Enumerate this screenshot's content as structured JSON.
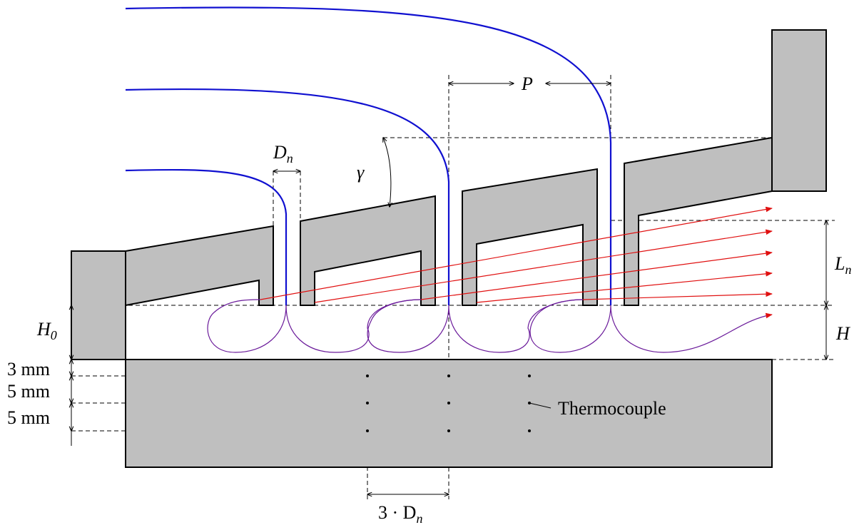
{
  "annotations": [
    {
      "text": "P"
    },
    {
      "text": "D",
      "sub": "n"
    },
    {
      "text": "γ"
    },
    {
      "text": "L",
      "sub": "n"
    },
    {
      "text": "H"
    },
    {
      "text": "H",
      "sub": "0"
    },
    {
      "text": "3 mm"
    },
    {
      "text": "5 mm"
    },
    {
      "text": "5 mm"
    },
    {
      "text": "Thermocouple"
    },
    {
      "text": "3 · D",
      "sub": "n"
    }
  ]
}
